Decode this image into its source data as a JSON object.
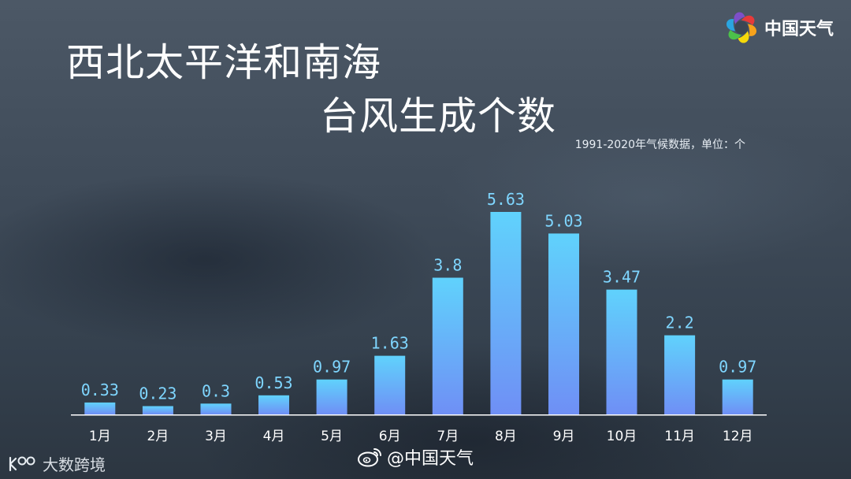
{
  "brand": {
    "name": "中国天气",
    "logo_colors": [
      "#e63a3a",
      "#f7a21b",
      "#f5d90a",
      "#4cc04a",
      "#2aa5e0",
      "#7d4fc9"
    ]
  },
  "weibo": {
    "handle": "@中国天气",
    "icon": "weibo-icon"
  },
  "watermark": {
    "text": "大数跨境",
    "icon": "dashujk-logo-icon"
  },
  "colors": {
    "bar_top": "#60d2fc",
    "bar_bottom": "#6f8ff5",
    "value_label": "#7fd6ff",
    "axis": "#ffffff"
  },
  "chart_data": {
    "type": "bar",
    "title": "西北太平洋和南海",
    "subtitle": "台风生成个数",
    "note": "1991-2020年气候数据，单位：个",
    "categories": [
      "1月",
      "2月",
      "3月",
      "4月",
      "5月",
      "6月",
      "7月",
      "8月",
      "9月",
      "10月",
      "11月",
      "12月"
    ],
    "values": [
      0.33,
      0.23,
      0.3,
      0.53,
      0.97,
      1.63,
      3.8,
      5.63,
      5.03,
      3.47,
      2.2,
      0.97
    ],
    "value_labels": [
      "0.33",
      "0.23",
      "0.3",
      "0.53",
      "0.97",
      "1.63",
      "3.8",
      "5.63",
      "5.03",
      "3.47",
      "2.2",
      "0.97"
    ],
    "xlabel": "",
    "ylabel": "",
    "ylim": [
      0,
      5.63
    ],
    "grid": false,
    "legend": "none"
  }
}
